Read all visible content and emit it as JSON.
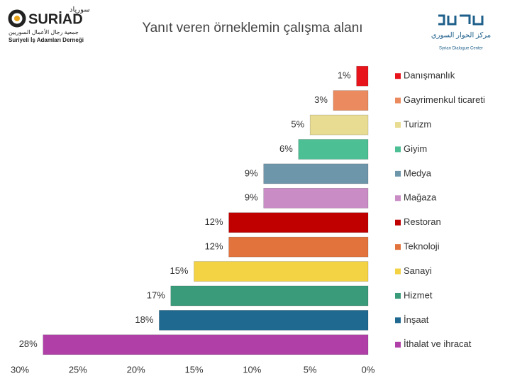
{
  "logos": {
    "left_brand": "SURİAD",
    "left_arabic_brand": "سورياد",
    "left_arabic_name": "جمعية رجال الأعمال السوريين",
    "left_name": "Suriyeli İş Adamları Derneği",
    "right_arabic": "مركز الحوار السوري",
    "right_name": "Syrian Dialogue Center"
  },
  "chart_data": {
    "type": "hbar",
    "title": "Yanıt veren örneklemin çalışma alanı",
    "categories": [
      "Danışmanlık",
      "Gayrimenkul ticareti",
      "Turizm",
      "Giyim",
      "Medya",
      "Mağaza",
      "Restoran",
      "Teknoloji",
      "Sanayi",
      "Hizmet",
      "İnşaat",
      "İthalat ve ihracat"
    ],
    "values": [
      1,
      3,
      5,
      6,
      9,
      9,
      12,
      12,
      15,
      17,
      18,
      28
    ],
    "value_labels": [
      "1%",
      "3%",
      "5%",
      "6%",
      "9%",
      "9%",
      "12%",
      "12%",
      "15%",
      "17%",
      "18%",
      "28%"
    ],
    "colors": [
      "#e8141c",
      "#ea8a5e",
      "#e8dc92",
      "#4cbf94",
      "#6e96ab",
      "#c98cc5",
      "#c00000",
      "#e2733c",
      "#f3d244",
      "#3a9b7a",
      "#1f6890",
      "#b040a8"
    ],
    "xlim": [
      0,
      30
    ],
    "x_reversed": true,
    "xticks": [
      {
        "value": 30,
        "label": "30%"
      },
      {
        "value": 25,
        "label": "25%"
      },
      {
        "value": 20,
        "label": "20%"
      },
      {
        "value": 15,
        "label": "15%"
      },
      {
        "value": 10,
        "label": "10%"
      },
      {
        "value": 5,
        "label": "5%"
      },
      {
        "value": 0,
        "label": "0%"
      }
    ],
    "legend": "right"
  }
}
